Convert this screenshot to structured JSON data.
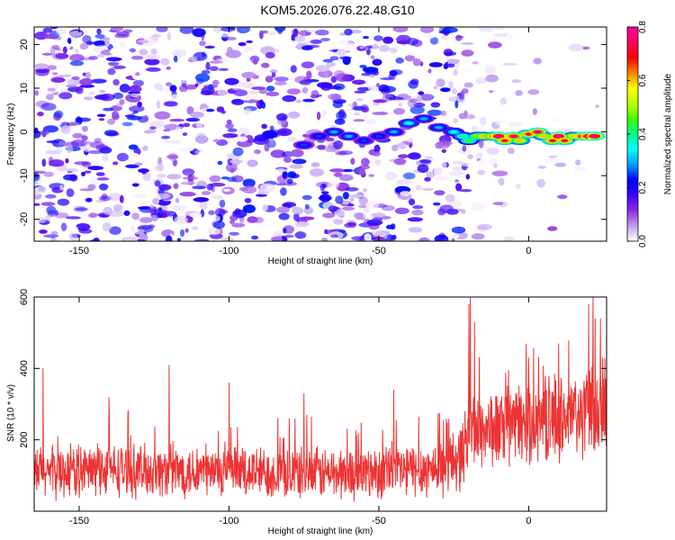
{
  "title": "KOM5.2026.076.22.48.G10",
  "chart_data": [
    {
      "type": "heatmap",
      "title": "KOM5.2026.076.22.48.G10",
      "xlabel": "Height of straight line (km)",
      "ylabel": "Frequency (Hz)",
      "xlim": [
        -165,
        26
      ],
      "ylim": [
        -25,
        24
      ],
      "xticks": [
        -150,
        -100,
        -50,
        0
      ],
      "xtick_labels": [
        "-150",
        "-100",
        "-50",
        "0"
      ],
      "yticks": [
        -20,
        -10,
        0,
        10,
        20
      ],
      "ytick_labels": [
        "-20",
        "-10",
        "0",
        "10",
        "20"
      ],
      "colorbar": {
        "label": "Normalized spectral amplitude",
        "range": [
          0.0,
          0.8
        ],
        "ticks": [
          0.0,
          0.2,
          0.4,
          0.6,
          0.8
        ],
        "tick_labels": [
          "0.0",
          "0.2",
          "0.4",
          "0.6",
          "0.8"
        ],
        "colors": [
          "#ffffff",
          "#c0a0f0",
          "#8a2be2",
          "#3a00ff",
          "#0000ff",
          "#00a0ff",
          "#00ffff",
          "#00ff80",
          "#40ff00",
          "#c0ff00",
          "#ffff00",
          "#ff8000",
          "#ff0000",
          "#ff0060",
          "#ff00a0"
        ]
      },
      "signal_trace": {
        "x": [
          -75,
          -70,
          -65,
          -60,
          -55,
          -50,
          -45,
          -40,
          -35,
          -30,
          -25,
          -22,
          -20,
          -17,
          -15,
          -12,
          -10,
          -8,
          -5,
          -3,
          0,
          3,
          5,
          8,
          10,
          12,
          15,
          18,
          20,
          22
        ],
        "y": [
          -3,
          -1,
          0,
          -1,
          -2,
          -1,
          0,
          2,
          3,
          1,
          0,
          -1,
          -2,
          -1,
          -1,
          -1,
          -1,
          -2,
          -1,
          -2,
          -0.5,
          0,
          -1,
          -2,
          -1,
          -2,
          -1,
          -1,
          -1,
          -1
        ],
        "peak_amplitude": [
          0.25,
          0.25,
          0.3,
          0.3,
          0.25,
          0.25,
          0.3,
          0.35,
          0.3,
          0.3,
          0.35,
          0.4,
          0.45,
          0.55,
          0.6,
          0.65,
          0.8,
          0.7,
          0.75,
          0.6,
          0.7,
          0.75,
          0.6,
          0.7,
          0.8,
          0.7,
          0.6,
          0.75,
          0.8,
          0.8
        ]
      },
      "noise_floor_amplitude": 0.25,
      "noise_fade_start_x": -20
    },
    {
      "type": "line",
      "xlabel": "Height of straight line (km)",
      "ylabel": "SNR (10 * v/v)",
      "xlim": [
        -165,
        26
      ],
      "ylim": [
        0,
        600
      ],
      "xticks": [
        -150,
        -100,
        -50,
        0
      ],
      "xtick_labels": [
        "-150",
        "-100",
        "-50",
        "0"
      ],
      "yticks": [
        200,
        400,
        600
      ],
      "ytick_labels": [
        "200",
        "400",
        "600"
      ],
      "series": [
        {
          "name": "SNR",
          "color": "#ee3333",
          "envelope_x": [
            -165,
            -140,
            -100,
            -60,
            -30,
            -22,
            -20,
            -10,
            0,
            10,
            20,
            26
          ],
          "envelope_mean": [
            110,
            115,
            110,
            105,
            120,
            160,
            230,
            230,
            250,
            260,
            270,
            280
          ],
          "envelope_spread": [
            70,
            70,
            70,
            70,
            75,
            95,
            110,
            105,
            110,
            115,
            120,
            120
          ],
          "spikes": [
            [
              -162,
              400
            ],
            [
              -120,
              410
            ],
            [
              -19.5,
              600
            ],
            [
              -20,
              580
            ],
            [
              -18,
              530
            ],
            [
              0,
              430
            ],
            [
              10,
              470
            ],
            [
              20,
              580
            ],
            [
              21.5,
              600
            ],
            [
              24,
              540
            ],
            [
              -140,
              320
            ],
            [
              -100,
              360
            ],
            [
              -75,
              330
            ],
            [
              -45,
              340
            ]
          ]
        }
      ]
    }
  ]
}
